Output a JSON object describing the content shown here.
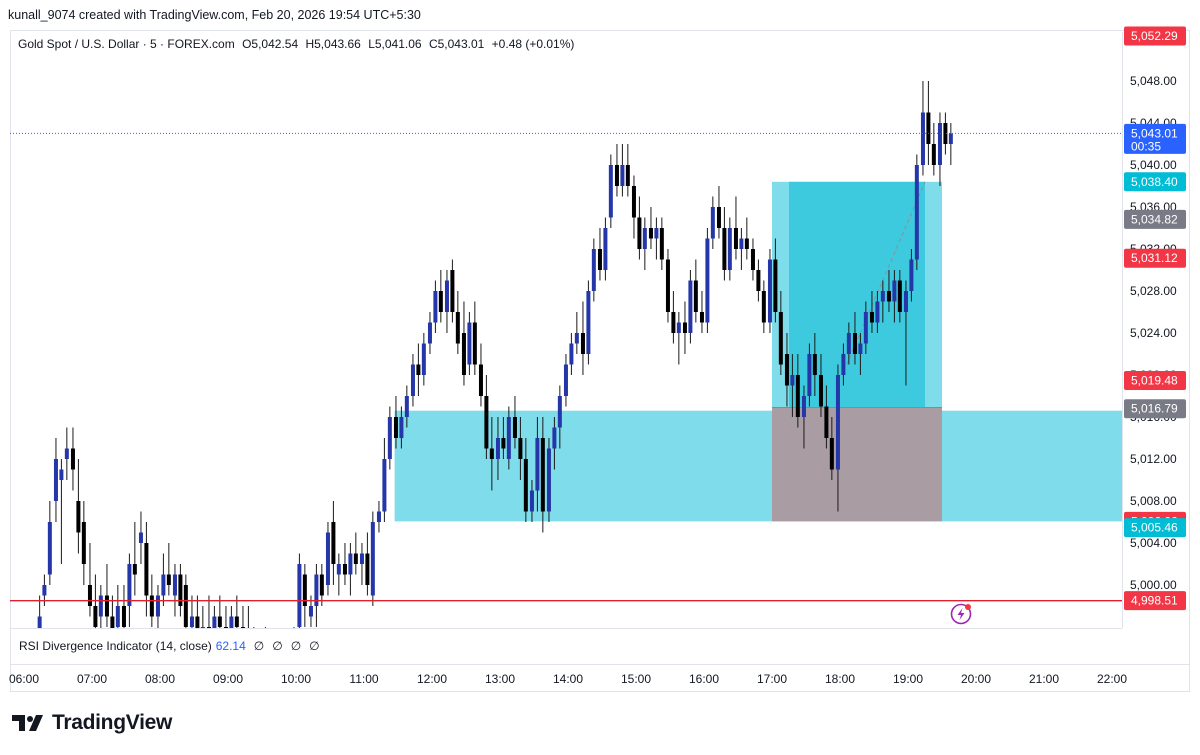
{
  "header": {
    "credit": "kunall_9074 created with TradingView.com, Feb 20, 2026 19:54 UTC+5:30"
  },
  "legend": {
    "symbol": "Gold Spot / U.S. Dollar · 5 · FOREX.com",
    "open": "O5,042.54",
    "high": "H5,043.66",
    "low": "L5,041.06",
    "close": "C5,043.01",
    "change": "+0.48 (+0.01%)"
  },
  "indicator": {
    "name": "RSI Divergence Indicator (14, close)",
    "value": "62.14",
    "slots": [
      "∅",
      "∅",
      "∅",
      "∅"
    ]
  },
  "brand": {
    "name": "TradingView"
  },
  "colors": {
    "up_body": "#2537a8",
    "down_body": "#000000",
    "wick": "#1a1a1a",
    "zone": "#7fdcea",
    "target": "#3ecade",
    "stop": "#aa9ca3",
    "res_line": "#e0202f",
    "last_price": "#2962ff",
    "red_tag": "#f23645",
    "cyan_tag": "#00bcd4",
    "grey_tag": "#787b86"
  },
  "chart_data": {
    "type": "candlestick",
    "ylim": [
      4996,
      5054
    ],
    "y_ticks": [
      "5,000.00",
      "5,004.00",
      "5,008.00",
      "5,012.00",
      "5,016.00",
      "5,020.00",
      "5,024.00",
      "5,028.00",
      "5,032.00",
      "5,036.00",
      "5,040.00",
      "5,044.00",
      "5,048.00"
    ],
    "y_tick_values": [
      5000,
      5004,
      5008,
      5012,
      5016,
      5020,
      5024,
      5028,
      5032,
      5036,
      5040,
      5044,
      5048
    ],
    "x_labels": [
      "06:00",
      "07:00",
      "08:00",
      "09:00",
      "10:00",
      "11:00",
      "12:00",
      "13:00",
      "14:00",
      "15:00",
      "16:00",
      "17:00",
      "18:00",
      "19:00",
      "20:00",
      "21:00",
      "22:00"
    ],
    "x_label_hours": [
      6,
      7,
      8,
      9,
      10,
      11,
      12,
      13,
      14,
      15,
      16,
      17,
      18,
      19,
      20,
      21,
      22
    ],
    "price_tags": [
      {
        "value": 5052.29,
        "label": "5,052.29",
        "kind": "red"
      },
      {
        "value": 5043.01,
        "label": "5,043.01",
        "kind": "blue",
        "sub": "00:35"
      },
      {
        "value": 5038.4,
        "label": "5,038.40",
        "kind": "cyan"
      },
      {
        "value": 5034.82,
        "label": "5,034.82",
        "kind": "grey"
      },
      {
        "value": 5031.12,
        "label": "5,031.12",
        "kind": "red"
      },
      {
        "value": 5019.48,
        "label": "5,019.48",
        "kind": "red"
      },
      {
        "value": 5016.79,
        "label": "5,016.79",
        "kind": "grey"
      },
      {
        "value": 5006.06,
        "label": "5,006.06",
        "kind": "red"
      },
      {
        "value": 5005.46,
        "label": "5,005.46",
        "kind": "cyan"
      },
      {
        "value": 4998.51,
        "label": "4,998.51",
        "kind": "red"
      }
    ],
    "support_line": 4998.51,
    "last_price": 5043.01,
    "demand_zone": {
      "from_hour": 11.45,
      "to_hour": 22.3,
      "top": 5016.6,
      "bottom": 5006.06
    },
    "position": {
      "from_hour": 17.0,
      "to_hour": 19.5,
      "target": 5038.4,
      "entry": 5016.9,
      "stop": 5006.06
    },
    "candles": [
      [
        5.8,
        4990,
        4995,
        4988,
        4993
      ],
      [
        6.23,
        4995,
        4999,
        4990,
        4997
      ],
      [
        6.3,
        4999,
        5001,
        4998,
        5000
      ],
      [
        6.38,
        5001,
        5008,
        5000,
        5006
      ],
      [
        6.47,
        5008,
        5014,
        5006,
        5012
      ],
      [
        6.55,
        5010,
        5012,
        5002,
        5011
      ],
      [
        6.63,
        5012,
        5015,
        5010,
        5013
      ],
      [
        6.72,
        5013,
        5015,
        5009,
        5011
      ],
      [
        6.8,
        5008,
        5012,
        5003,
        5005
      ],
      [
        6.88,
        5006,
        5008,
        5000,
        5002
      ],
      [
        6.97,
        5000,
        5004,
        4997,
        4998
      ],
      [
        7.05,
        4998,
        5001,
        4994,
        4996
      ],
      [
        7.13,
        4997,
        5000,
        4993,
        4999
      ],
      [
        7.22,
        4999,
        5002,
        4996,
        4997
      ],
      [
        7.3,
        4997,
        4999,
        4993,
        4994
      ],
      [
        7.38,
        4996,
        5000,
        4993,
        4998
      ],
      [
        7.47,
        4998,
        5000,
        4994,
        4996
      ],
      [
        7.55,
        4998,
        5003,
        4996,
        5002
      ],
      [
        7.63,
        5002,
        5006,
        4999,
        5001
      ],
      [
        7.72,
        5004,
        5007,
        5002,
        5005
      ],
      [
        7.8,
        5004,
        5006,
        4997,
        4999
      ],
      [
        7.88,
        4999,
        5001,
        4996,
        4997
      ],
      [
        7.97,
        4997,
        5000,
        4995,
        4999
      ],
      [
        8.05,
        4999,
        5003,
        4998,
        5001
      ],
      [
        8.13,
        5001,
        5004,
        4999,
        5000
      ],
      [
        8.22,
        4999,
        5002,
        4997,
        5001
      ],
      [
        8.3,
        5001,
        5002,
        4997,
        4998
      ],
      [
        8.38,
        5000,
        5001,
        4995,
        4996
      ],
      [
        8.47,
        4996,
        4999,
        4994,
        4997
      ],
      [
        8.55,
        4997,
        4999,
        4994,
        4995
      ],
      [
        8.63,
        4995,
        4998,
        4993,
        4996
      ],
      [
        8.72,
        4996,
        4999,
        4994,
        4995
      ],
      [
        8.8,
        4995,
        4998,
        4993,
        4997
      ],
      [
        8.88,
        4997,
        4999,
        4995,
        4996
      ],
      [
        8.97,
        4996,
        4998,
        4993,
        4994
      ],
      [
        9.05,
        4994,
        4998,
        4992,
        4997
      ],
      [
        9.13,
        4997,
        4999,
        4995,
        4996
      ],
      [
        9.22,
        4996,
        4998,
        4994,
        4995
      ],
      [
        9.3,
        4995,
        4998,
        4992,
        4994
      ],
      [
        9.38,
        4994,
        4996,
        4991,
        4993
      ],
      [
        9.47,
        4993,
        4995,
        4990,
        4994
      ],
      [
        9.55,
        4994,
        4996,
        4991,
        4992
      ],
      [
        9.63,
        4992,
        4995,
        4990,
        4993
      ],
      [
        9.72,
        4993,
        4995,
        4991,
        4992
      ],
      [
        9.8,
        4992,
        4994,
        4990,
        4993
      ],
      [
        9.88,
        4993,
        4995,
        4991,
        4992
      ],
      [
        9.97,
        4992,
        4996,
        4991,
        4995
      ],
      [
        10.05,
        4996,
        5003,
        4995,
        5002
      ],
      [
        10.13,
        5001,
        5002,
        4996,
        4998
      ],
      [
        10.22,
        4997,
        4999,
        4996,
        4998
      ],
      [
        10.3,
        4998,
        5002,
        4996,
        5001
      ],
      [
        10.38,
        5001,
        5002,
        4998,
        4999
      ],
      [
        10.47,
        5000,
        5006,
        4999,
        5005
      ],
      [
        10.55,
        5006,
        5008,
        5000,
        5002
      ],
      [
        10.63,
        5001,
        5003,
        4999,
        5002
      ],
      [
        10.72,
        5002,
        5004,
        5000,
        5001
      ],
      [
        10.8,
        5001,
        5004,
        4999,
        5003
      ],
      [
        10.88,
        5003,
        5005,
        5001,
        5002
      ],
      [
        10.97,
        5002,
        5004,
        5000,
        5003
      ],
      [
        11.05,
        5003,
        5005,
        4999,
        5000
      ],
      [
        11.13,
        4999,
        5007,
        4998,
        5006
      ],
      [
        11.22,
        5006,
        5008,
        5005,
        5007
      ],
      [
        11.3,
        5007,
        5014,
        5006,
        5012
      ],
      [
        11.38,
        5012,
        5017,
        5011,
        5016
      ],
      [
        11.47,
        5016,
        5018,
        5013,
        5014
      ],
      [
        11.55,
        5014,
        5017,
        5013,
        5016
      ],
      [
        11.63,
        5016,
        5019,
        5015,
        5018
      ],
      [
        11.72,
        5018,
        5022,
        5017,
        5021
      ],
      [
        11.8,
        5021,
        5023,
        5018,
        5020
      ],
      [
        11.88,
        5020,
        5024,
        5019,
        5023
      ],
      [
        11.97,
        5023,
        5026,
        5022,
        5025
      ],
      [
        12.05,
        5025,
        5029,
        5024,
        5028
      ],
      [
        12.13,
        5028,
        5030,
        5025,
        5026
      ],
      [
        12.22,
        5026,
        5030,
        5024,
        5029
      ],
      [
        12.3,
        5030,
        5031,
        5025,
        5026
      ],
      [
        12.38,
        5026,
        5028,
        5022,
        5023
      ],
      [
        12.47,
        5024,
        5027,
        5019,
        5020
      ],
      [
        12.55,
        5021,
        5026,
        5020,
        5025
      ],
      [
        12.63,
        5025,
        5027,
        5020,
        5021
      ],
      [
        12.72,
        5021,
        5023,
        5017,
        5018
      ],
      [
        12.8,
        5018,
        5020,
        5012,
        5013
      ],
      [
        12.88,
        5013,
        5016,
        5009,
        5012
      ],
      [
        12.97,
        5012,
        5016,
        5010,
        5014
      ],
      [
        13.05,
        5014,
        5016,
        5012,
        5013
      ],
      [
        13.13,
        5012,
        5017,
        5011,
        5016
      ],
      [
        13.22,
        5016,
        5018,
        5013,
        5014
      ],
      [
        13.3,
        5014,
        5016,
        5010,
        5012
      ],
      [
        13.38,
        5012,
        5014,
        5006,
        5007
      ],
      [
        13.47,
        5007,
        5010,
        5006,
        5009
      ],
      [
        13.55,
        5009,
        5016,
        5007,
        5014
      ],
      [
        13.63,
        5014,
        5016,
        5005,
        5007
      ],
      [
        13.72,
        5007,
        5014,
        5006,
        5013
      ],
      [
        13.8,
        5013,
        5016,
        5011,
        5015
      ],
      [
        13.88,
        5015,
        5019,
        5013,
        5018
      ],
      [
        13.97,
        5018,
        5022,
        5017,
        5021
      ],
      [
        14.05,
        5021,
        5024,
        5020,
        5023
      ],
      [
        14.13,
        5023,
        5026,
        5022,
        5024
      ],
      [
        14.22,
        5024,
        5027,
        5020,
        5022
      ],
      [
        14.3,
        5022,
        5029,
        5021,
        5028
      ],
      [
        14.38,
        5028,
        5033,
        5027,
        5032
      ],
      [
        14.47,
        5032,
        5034,
        5029,
        5030
      ],
      [
        14.55,
        5030,
        5035,
        5029,
        5034
      ],
      [
        14.63,
        5035,
        5041,
        5034,
        5040
      ],
      [
        14.72,
        5040,
        5042,
        5037,
        5038
      ],
      [
        14.8,
        5038,
        5042,
        5037,
        5040
      ],
      [
        14.88,
        5040,
        5042,
        5037,
        5038
      ],
      [
        14.97,
        5038,
        5039,
        5033,
        5035
      ],
      [
        15.05,
        5035,
        5037,
        5031,
        5032
      ],
      [
        15.13,
        5032,
        5035,
        5030,
        5034
      ],
      [
        15.22,
        5034,
        5036,
        5032,
        5033
      ],
      [
        15.3,
        5033,
        5035,
        5031,
        5034
      ],
      [
        15.38,
        5034,
        5035,
        5030,
        5031
      ],
      [
        15.47,
        5031,
        5032,
        5025,
        5026
      ],
      [
        15.55,
        5026,
        5028,
        5023,
        5024
      ],
      [
        15.63,
        5024,
        5026,
        5021,
        5025
      ],
      [
        15.72,
        5025,
        5027,
        5022,
        5024
      ],
      [
        15.8,
        5024,
        5030,
        5023,
        5029
      ],
      [
        15.88,
        5029,
        5031,
        5025,
        5026
      ],
      [
        15.97,
        5026,
        5028,
        5024,
        5025
      ],
      [
        16.05,
        5025,
        5034,
        5024,
        5033
      ],
      [
        16.13,
        5033,
        5037,
        5032,
        5036
      ],
      [
        16.22,
        5036,
        5038,
        5033,
        5034
      ],
      [
        16.3,
        5034,
        5036,
        5029,
        5030
      ],
      [
        16.38,
        5030,
        5035,
        5029,
        5034
      ],
      [
        16.47,
        5034,
        5037,
        5031,
        5032
      ],
      [
        16.55,
        5032,
        5034,
        5030,
        5033
      ],
      [
        16.63,
        5033,
        5035,
        5031,
        5032
      ],
      [
        16.72,
        5032,
        5033,
        5029,
        5030
      ],
      [
        16.8,
        5030,
        5031,
        5027,
        5028
      ],
      [
        16.88,
        5028,
        5029,
        5024,
        5025
      ],
      [
        16.97,
        5025,
        5032,
        5024,
        5031
      ],
      [
        17.05,
        5031,
        5033,
        5025,
        5026
      ],
      [
        17.13,
        5026,
        5028,
        5020,
        5021
      ],
      [
        17.22,
        5022,
        5024,
        5017,
        5019
      ],
      [
        17.3,
        5019,
        5022,
        5016,
        5020
      ],
      [
        17.38,
        5020,
        5022,
        5015,
        5016
      ],
      [
        17.47,
        5016,
        5019,
        5013,
        5018
      ],
      [
        17.55,
        5018,
        5023,
        5017,
        5022
      ],
      [
        17.63,
        5022,
        5024,
        5018,
        5020
      ],
      [
        17.72,
        5020,
        5022,
        5016,
        5017
      ],
      [
        17.8,
        5017,
        5019,
        5013,
        5014
      ],
      [
        17.88,
        5014,
        5016,
        5010,
        5011
      ],
      [
        17.97,
        5011,
        5021,
        5007,
        5020
      ],
      [
        18.05,
        5020,
        5023,
        5019,
        5022
      ],
      [
        18.13,
        5022,
        5025,
        5021,
        5024
      ],
      [
        18.22,
        5024,
        5026,
        5021,
        5022
      ],
      [
        18.3,
        5022,
        5024,
        5020,
        5023
      ],
      [
        18.38,
        5023,
        5027,
        5022,
        5026
      ],
      [
        18.47,
        5026,
        5028,
        5024,
        5025
      ],
      [
        18.55,
        5025,
        5028,
        5024,
        5027
      ],
      [
        18.63,
        5027,
        5029,
        5025,
        5028
      ],
      [
        18.72,
        5028,
        5030,
        5026,
        5027
      ],
      [
        18.8,
        5027,
        5030,
        5025,
        5029
      ],
      [
        18.88,
        5029,
        5030,
        5025,
        5026
      ],
      [
        18.97,
        5026,
        5029,
        5019,
        5028
      ],
      [
        19.05,
        5028,
        5032,
        5027,
        5031
      ],
      [
        19.13,
        5031,
        5041,
        5030,
        5040
      ],
      [
        19.22,
        5040,
        5048,
        5039,
        5045
      ],
      [
        19.3,
        5045,
        5048,
        5040,
        5042
      ],
      [
        19.38,
        5042,
        5044,
        5039,
        5040
      ],
      [
        19.47,
        5040,
        5045,
        5038,
        5044
      ],
      [
        19.55,
        5044,
        5045,
        5041,
        5042
      ],
      [
        19.63,
        5042,
        5044,
        5040,
        5043
      ]
    ]
  }
}
